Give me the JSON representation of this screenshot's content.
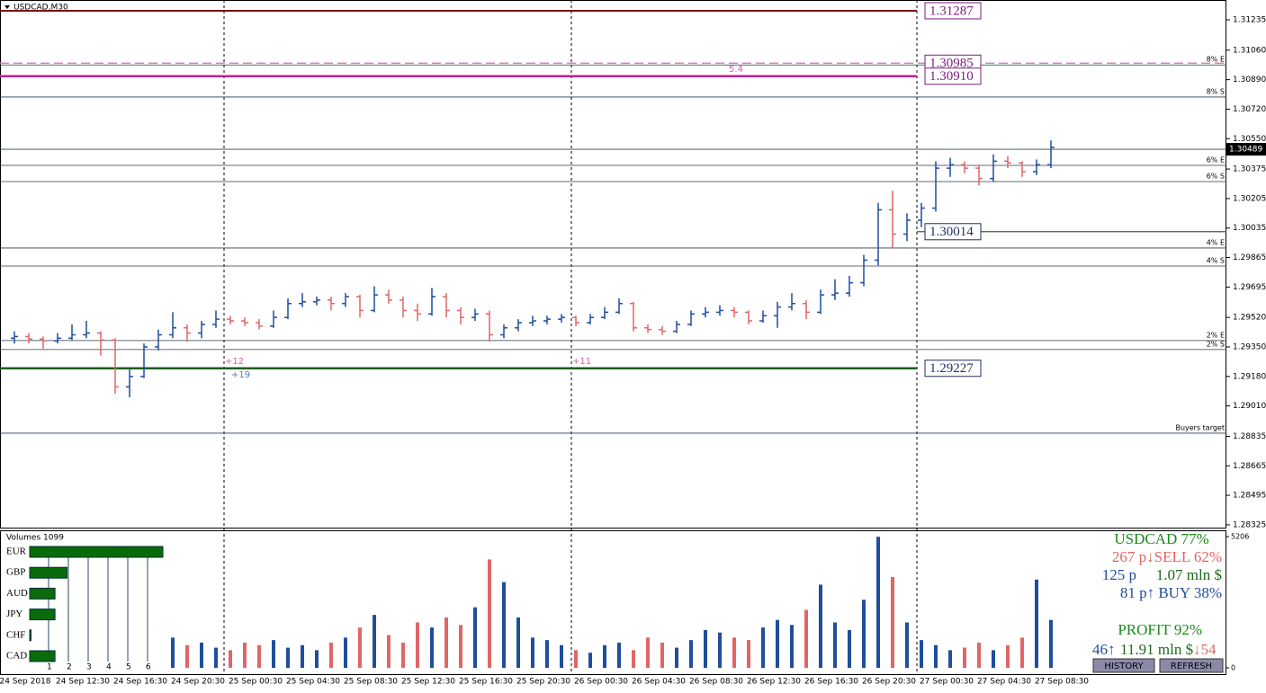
{
  "chart_data": {
    "type": "ohlc",
    "title": "USDCAD,M30",
    "up_color": "#1f4e9b",
    "down_color": "#e06666",
    "ylim": [
      1.28309,
      1.31349
    ],
    "yticks": [
      1.31235,
      {
        "value": 1.3106,
        "label": "1.31060"
      },
      {
        "value": 1.3089,
        "label": "1.30890"
      },
      {
        "value": 1.3072,
        "label": "1.30720"
      },
      {
        "value": 1.3055,
        "label": "1.30550"
      },
      1.30375,
      1.30205,
      1.30035,
      1.29865,
      1.29695,
      {
        "value": 1.2952,
        "label": "1.29520"
      },
      {
        "value": 1.2935,
        "label": "1.29350"
      },
      {
        "value": 1.2918,
        "label": "1.29180"
      },
      {
        "value": 1.2901,
        "label": "1.29010"
      },
      1.28835,
      1.28665,
      1.28495,
      1.28325
    ],
    "time_labels": [
      "24 Sep 2018",
      "24 Sep 12:30",
      "24 Sep 16:30",
      "24 Sep 20:30",
      "25 Sep 00:30",
      "25 Sep 04:30",
      "25 Sep 08:30",
      "25 Sep 12:30",
      "25 Sep 16:30",
      "25 Sep 20:30",
      "26 Sep 00:30",
      "26 Sep 04:30",
      "26 Sep 08:30",
      "26 Sep 12:30",
      "26 Sep 16:30",
      "26 Sep 20:30",
      "27 Sep 00:30",
      "27 Sep 04:30",
      "27 Sep 08:30"
    ],
    "ohlc": [
      [
        1.294,
        1.2944,
        1.2937,
        1.2941
      ],
      [
        1.2941,
        1.2943,
        1.2937,
        1.29395
      ],
      [
        1.29395,
        1.2941,
        1.2934,
        1.29385
      ],
      [
        1.29385,
        1.2943,
        1.2937,
        1.294
      ],
      [
        1.294,
        1.2948,
        1.2939,
        1.2942
      ],
      [
        1.2942,
        1.295,
        1.294,
        1.2943
      ],
      [
        1.2943,
        1.2944,
        1.293,
        1.2939
      ],
      [
        1.2939,
        1.294,
        1.2908,
        1.2912
      ],
      [
        1.2912,
        1.2922,
        1.2906,
        1.2918
      ],
      [
        1.2918,
        1.2937,
        1.2917,
        1.2935
      ],
      [
        1.2935,
        1.2945,
        1.2933,
        1.2942
      ],
      [
        1.2942,
        1.2955,
        1.294,
        1.2946
      ],
      [
        1.2946,
        1.2948,
        1.2938,
        1.2943
      ],
      [
        1.2943,
        1.295,
        1.294,
        1.2948
      ],
      [
        1.2948,
        1.2956,
        1.2946,
        1.2951
      ],
      [
        1.2951,
        1.2953,
        1.2948,
        1.295
      ],
      [
        1.295,
        1.2952,
        1.2947,
        1.2949
      ],
      [
        1.2949,
        1.2951,
        1.2945,
        1.2947
      ],
      [
        1.2947,
        1.2956,
        1.2946,
        1.2952
      ],
      [
        1.2952,
        1.2963,
        1.2951,
        1.296
      ],
      [
        1.296,
        1.2966,
        1.2958,
        1.2961
      ],
      [
        1.2961,
        1.2964,
        1.2959,
        1.2962
      ],
      [
        1.2962,
        1.2964,
        1.2956,
        1.296
      ],
      [
        1.296,
        1.2966,
        1.2958,
        1.2964
      ],
      [
        1.2964,
        1.2965,
        1.2952,
        1.2956
      ],
      [
        1.2956,
        1.297,
        1.2955,
        1.2965
      ],
      [
        1.2965,
        1.2968,
        1.296,
        1.2962
      ],
      [
        1.2962,
        1.2964,
        1.2952,
        1.2956
      ],
      [
        1.2956,
        1.296,
        1.295,
        1.2954
      ],
      [
        1.2954,
        1.2969,
        1.2953,
        1.2964
      ],
      [
        1.2964,
        1.2966,
        1.2952,
        1.2956
      ],
      [
        1.2956,
        1.2958,
        1.2948,
        1.2952
      ],
      [
        1.2952,
        1.2957,
        1.295,
        1.2954
      ],
      [
        1.2954,
        1.2956,
        1.2938,
        1.2942
      ],
      [
        1.2942,
        1.2948,
        1.294,
        1.2946
      ],
      [
        1.2946,
        1.2951,
        1.2944,
        1.2949
      ],
      [
        1.2949,
        1.2953,
        1.2947,
        1.295
      ],
      [
        1.295,
        1.2953,
        1.2948,
        1.2951
      ],
      [
        1.2951,
        1.2954,
        1.2949,
        1.2952
      ],
      [
        1.2952,
        1.2953,
        1.2947,
        1.2949
      ],
      [
        1.2949,
        1.2954,
        1.2948,
        1.2952
      ],
      [
        1.2952,
        1.2958,
        1.2951,
        1.2955
      ],
      [
        1.2955,
        1.2963,
        1.2954,
        1.296
      ],
      [
        1.296,
        1.2961,
        1.2944,
        1.2946
      ],
      [
        1.2946,
        1.2948,
        1.2943,
        1.2945
      ],
      [
        1.2945,
        1.2947,
        1.2942,
        1.2944
      ],
      [
        1.2944,
        1.295,
        1.2943,
        1.2948
      ],
      [
        1.2948,
        1.2956,
        1.2947,
        1.2954
      ],
      [
        1.2954,
        1.2958,
        1.2952,
        1.2955
      ],
      [
        1.2955,
        1.2959,
        1.2953,
        1.2956
      ],
      [
        1.2956,
        1.2958,
        1.2952,
        1.2955
      ],
      [
        1.2955,
        1.2956,
        1.2948,
        1.295
      ],
      [
        1.295,
        1.2956,
        1.2949,
        1.2953
      ],
      [
        1.2953,
        1.2961,
        1.2946,
        1.2958
      ],
      [
        1.2958,
        1.2966,
        1.2956,
        1.296
      ],
      [
        1.296,
        1.2962,
        1.2951,
        1.2955
      ],
      [
        1.2955,
        1.2968,
        1.2954,
        1.2965
      ],
      [
        1.2965,
        1.2974,
        1.2962,
        1.2966
      ],
      [
        1.2966,
        1.2976,
        1.2964,
        1.2972
      ],
      [
        1.2972,
        1.2988,
        1.297,
        1.2985
      ],
      [
        1.2985,
        1.3018,
        1.2982,
        1.3014
      ],
      [
        1.3014,
        1.3025,
        1.2992,
        1.3
      ],
      [
        1.3,
        1.3012,
        1.2996,
        1.3008
      ],
      [
        1.3008,
        1.3018,
        1.3004,
        1.3015
      ],
      [
        1.3015,
        1.3042,
        1.3013,
        1.3038
      ],
      [
        1.3038,
        1.3044,
        1.3033,
        1.304
      ],
      [
        1.304,
        1.3042,
        1.3035,
        1.3038
      ],
      [
        1.3038,
        1.304,
        1.3028,
        1.3032
      ],
      [
        1.3032,
        1.3046,
        1.303,
        1.3042
      ],
      [
        1.3042,
        1.3045,
        1.3038,
        1.3041
      ],
      [
        1.3041,
        1.3042,
        1.3033,
        1.3036
      ],
      [
        1.3036,
        1.3043,
        1.3034,
        1.304
      ],
      [
        1.304,
        1.3054,
        1.3038,
        1.305
      ]
    ],
    "last_price": 1.30489,
    "boxed_levels": [
      {
        "value": 1.31287,
        "color": "#7a1d7a",
        "line_color": "#7b1010",
        "dashed": false
      },
      {
        "value": 1.30985,
        "color": "#7a1d7a",
        "line_color": "#d070b0",
        "dashed": true
      },
      {
        "value": 1.3091,
        "label": "1.30910",
        "color": "#7a1d7a",
        "line_color": "#c0208a",
        "dashed": false
      },
      {
        "value": 1.30014,
        "color": "#1f2f5f",
        "line_color": "#2e6b2e",
        "dashed": false
      },
      {
        "value": 1.29227,
        "color": "#1f2f5f",
        "line_color": "#1e5e1e",
        "dashed": false
      }
    ],
    "zones": [
      {
        "value": 1.30975,
        "label": "8% E"
      },
      {
        "value": 1.3079,
        "label": "8% S"
      },
      {
        "value": 1.30396,
        "label": "6% E"
      },
      {
        "value": 1.30303,
        "label": "6% S"
      },
      {
        "value": 1.2992,
        "label": "4% E"
      },
      {
        "value": 1.29816,
        "label": "4% S"
      },
      {
        "value": 1.29387,
        "label": "2% E"
      },
      {
        "value": 1.29335,
        "label": "2% S"
      },
      {
        "value": 1.28853,
        "label": "Buyers target"
      }
    ],
    "annotations": [
      "+12",
      "+19",
      "+11",
      "5.4"
    ],
    "volumes": {
      "title": "Volumes 1099",
      "ylim": [
        0,
        5206
      ],
      "yticks": [
        0,
        5206
      ],
      "values": [
        null,
        null,
        null,
        null,
        null,
        null,
        null,
        null,
        null,
        null,
        null,
        1200,
        900,
        1000,
        800,
        700,
        1000,
        900,
        1100,
        800,
        900,
        700,
        1000,
        1200,
        1600,
        2100,
        1300,
        1000,
        1800,
        1600,
        2000,
        1700,
        2400,
        4300,
        3400,
        2000,
        1200,
        1100,
        900,
        700,
        600,
        900,
        1000,
        700,
        1200,
        1000,
        800,
        1100,
        1500,
        1400,
        1200,
        1100,
        1600,
        1900,
        1700,
        2300,
        3300,
        1800,
        1500,
        2700,
        5200,
        3600,
        1800,
        1100,
        900,
        700,
        800,
        1000,
        700,
        900,
        1200,
        3500,
        1900
      ]
    }
  },
  "widget": {
    "currencies": [
      {
        "name": "EUR",
        "value": 100
      },
      {
        "name": "GBP",
        "value": 28
      },
      {
        "name": "AUD",
        "value": 19
      },
      {
        "name": "JPY",
        "value": 19
      },
      {
        "name": "CHF",
        "value": 1
      },
      {
        "name": "CAD",
        "value": 19
      }
    ],
    "columns": [
      1,
      2,
      3,
      4,
      5,
      6
    ],
    "symbol_line": "USDCAD 77%",
    "sell_line": "267 p↓SELL 62%",
    "points": "125 p",
    "volume": "1.07 mln $",
    "buy_line": "81 p↑ BUY 38%",
    "profit": "PROFIT 92%",
    "buy_count": "46↑",
    "total_volume": "11.91 mln $",
    "sell_count": "↓54",
    "buttons": [
      "HISTORY",
      "REFRESH"
    ]
  }
}
